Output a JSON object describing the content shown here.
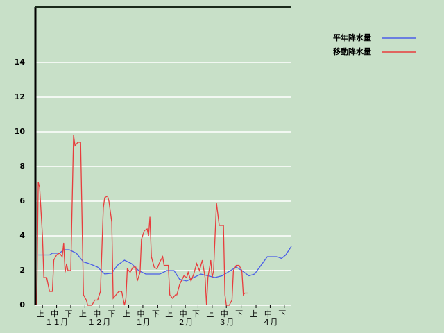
{
  "chart_data": {
    "type": "line",
    "xlim": [
      0,
      181
    ],
    "xticks": [
      {
        "value": 5,
        "label": "上"
      },
      {
        "value": 15,
        "label": "中"
      },
      {
        "value": 25,
        "label": "下"
      },
      {
        "value": 35,
        "label": "上"
      },
      {
        "value": 45,
        "label": "中"
      },
      {
        "value": 55.5,
        "label": "下"
      },
      {
        "value": 66,
        "label": "上"
      },
      {
        "value": 76,
        "label": "中"
      },
      {
        "value": 86.5,
        "label": "下"
      },
      {
        "value": 96,
        "label": "上"
      },
      {
        "value": 106,
        "label": "中"
      },
      {
        "value": 115,
        "label": "下"
      },
      {
        "value": 125,
        "label": "上"
      },
      {
        "value": 135,
        "label": "中"
      },
      {
        "value": 145.5,
        "label": "下"
      },
      {
        "value": 156,
        "label": "上"
      },
      {
        "value": 166,
        "label": "中"
      },
      {
        "value": 176,
        "label": "下"
      }
    ],
    "month_labels": [
      {
        "value": 15,
        "label": "１１月"
      },
      {
        "value": 45,
        "label": "１２月"
      },
      {
        "value": 76,
        "label": "１月"
      },
      {
        "value": 106,
        "label": "２月"
      },
      {
        "value": 135,
        "label": "３月"
      },
      {
        "value": 166,
        "label": "４月"
      }
    ],
    "ylim": [
      0,
      17.2
    ],
    "yticks": [
      0,
      2,
      4,
      6,
      8,
      10,
      12,
      14
    ],
    "grid": true,
    "legend": "right",
    "series": [
      {
        "name": "平年降水量",
        "color": "#4a5ee8",
        "x": [
          2,
          10,
          12,
          17,
          20,
          24,
          29,
          34,
          38,
          44,
          49,
          54,
          58,
          63,
          68,
          73,
          78,
          88,
          93,
          98,
          102,
          107,
          117,
          122,
          127,
          132,
          142,
          146,
          151,
          155,
          164,
          171,
          174,
          177,
          181
        ],
        "values": [
          2.9,
          2.9,
          3.0,
          3.0,
          3.2,
          3.2,
          3.0,
          2.5,
          2.4,
          2.2,
          1.8,
          1.85,
          2.3,
          2.6,
          2.4,
          2.0,
          1.8,
          1.8,
          2.0,
          2.0,
          1.5,
          1.4,
          1.8,
          1.7,
          1.6,
          1.7,
          2.2,
          2.0,
          1.7,
          1.8,
          2.8,
          2.8,
          2.7,
          2.9,
          3.4
        ]
      },
      {
        "name": "移動降水量",
        "color": "#e83c3c",
        "x": [
          1,
          2,
          3,
          5,
          6,
          8,
          10,
          12,
          13,
          15,
          17,
          19,
          20,
          21,
          22,
          23,
          25,
          27,
          28,
          30,
          32,
          34,
          36,
          37,
          40,
          42,
          44,
          46,
          48,
          49,
          51,
          52,
          54,
          55,
          57,
          59,
          61,
          63,
          64,
          65,
          67,
          69,
          71,
          72,
          74,
          75,
          77,
          79,
          80,
          81,
          82,
          84,
          86,
          88,
          90,
          91,
          94,
          95,
          97,
          99,
          100,
          102,
          105,
          107,
          108,
          110,
          112,
          114,
          116,
          118,
          120,
          121,
          122,
          124,
          125,
          126,
          128,
          130,
          133,
          134,
          135,
          137,
          139,
          140,
          142,
          144,
          146,
          147,
          148,
          150
        ],
        "values": [
          0,
          7.1,
          6.8,
          4.0,
          1.6,
          1.6,
          0.8,
          0.8,
          2.6,
          2.9,
          3.0,
          2.8,
          3.6,
          1.9,
          2.4,
          2.0,
          2.0,
          9.8,
          9.2,
          9.4,
          9.4,
          0.6,
          0.3,
          0,
          0,
          0.3,
          0.3,
          0.8,
          5.6,
          6.2,
          6.3,
          6.0,
          4.8,
          0.4,
          0.6,
          0.8,
          0.8,
          0,
          0.4,
          2.1,
          1.9,
          2.2,
          2.2,
          1.4,
          1.9,
          3.8,
          4.3,
          4.4,
          4.0,
          5.1,
          2.8,
          2.2,
          2.1,
          2.5,
          2.8,
          2.3,
          2.3,
          0.6,
          0.4,
          0.6,
          0.6,
          1.2,
          1.7,
          1.6,
          1.9,
          1.4,
          1.8,
          2.4,
          2.0,
          2.6,
          1.6,
          0,
          1.6,
          2.6,
          1.6,
          2.0,
          5.9,
          4.6,
          4.6,
          0.6,
          0,
          0,
          0.3,
          2.0,
          2.3,
          2.3,
          2.0,
          0.6,
          0.7,
          0.7
        ]
      }
    ]
  }
}
